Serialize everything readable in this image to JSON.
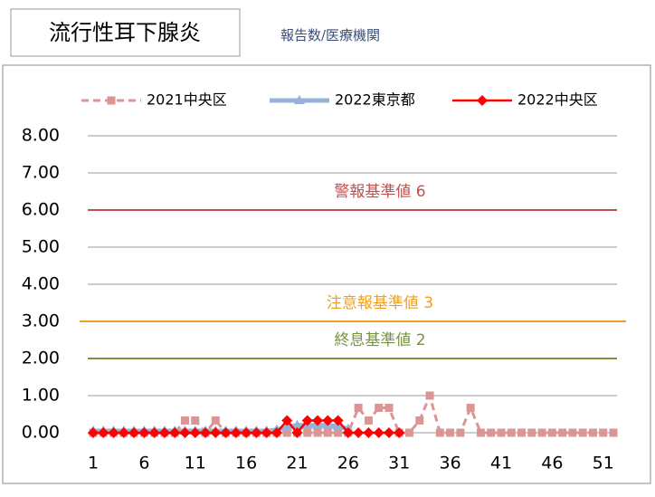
{
  "chart_data": {
    "type": "line",
    "title": "流行性耳下腺炎",
    "subtitle": "報告数/医療機関",
    "categories": [
      1,
      null,
      null,
      null,
      null,
      6,
      null,
      null,
      null,
      null,
      11,
      null,
      null,
      null,
      null,
      16,
      null,
      null,
      null,
      null,
      21,
      null,
      null,
      null,
      null,
      26,
      null,
      null,
      null,
      null,
      31,
      null,
      null,
      null,
      null,
      36,
      null,
      null,
      null,
      null,
      41,
      null,
      null,
      null,
      null,
      46,
      null,
      null,
      null,
      null,
      51,
      null
    ],
    "ylim": [
      0,
      8
    ],
    "yticks": [
      {
        "value": 0,
        "label": "0.00"
      },
      {
        "value": 1,
        "label": "1.00"
      },
      {
        "value": 2,
        "label": "2.00"
      },
      {
        "value": 3,
        "label": "3.00"
      },
      {
        "value": 4,
        "label": "4.00"
      },
      {
        "value": 5,
        "label": "5.00"
      },
      {
        "value": 6,
        "label": "6.00"
      },
      {
        "value": 7,
        "label": "7.00"
      },
      {
        "value": 8,
        "label": "8.00"
      }
    ],
    "grid": true,
    "legend": "top",
    "series": [
      {
        "name": "2021中央区",
        "color": "#d99694",
        "values": [
          0,
          0,
          0,
          0,
          0,
          0,
          0,
          0,
          0,
          0.33,
          0.33,
          0,
          0.33,
          0,
          0,
          0,
          0,
          0,
          0,
          0,
          0,
          0,
          0,
          0,
          0,
          0,
          0.67,
          0.33,
          0.67,
          0.67,
          0,
          0,
          0.33,
          1,
          0,
          0,
          0,
          0.67,
          0,
          0,
          0,
          0,
          0,
          0,
          0,
          0,
          0,
          0,
          0,
          0,
          0,
          0
        ]
      },
      {
        "name": "2022東京都",
        "color": "#95b3d7",
        "values": [
          0.05,
          0.05,
          0.05,
          0.05,
          0.05,
          0.05,
          0.05,
          0.05,
          0.05,
          0.05,
          0.05,
          0.05,
          0.05,
          0.05,
          0.05,
          0.05,
          0.05,
          0.05,
          0.08,
          0.15,
          0.2,
          0.2,
          0.2,
          0.2,
          0.18,
          0.1,
          null,
          null,
          null,
          null,
          null,
          null,
          null,
          null,
          null,
          null,
          null,
          null,
          null,
          null,
          null,
          null,
          null,
          null,
          null,
          null,
          null,
          null,
          null,
          null,
          null,
          null
        ]
      },
      {
        "name": "2022中央区",
        "color": "#ff0000",
        "values": [
          0,
          0,
          0,
          0,
          0,
          0,
          0,
          0,
          0,
          0,
          0,
          0,
          0,
          0,
          0,
          0,
          0,
          0,
          0,
          0.33,
          0,
          0.33,
          0.33,
          0.33,
          0.33,
          0,
          0,
          0,
          0,
          0,
          0,
          null,
          null,
          null,
          null,
          null,
          null,
          null,
          null,
          null,
          null,
          null,
          null,
          null,
          null,
          null,
          null,
          null,
          null,
          null,
          null,
          null
        ]
      }
    ],
    "reference_lines": [
      {
        "label": "警報基準値 6",
        "value": 6,
        "color": "#c0504d"
      },
      {
        "label": "注意報基準値 3",
        "value": 3,
        "color": "#f0a020"
      },
      {
        "label": "終息基準値 2",
        "value": 2,
        "color": "#77933c"
      }
    ]
  }
}
